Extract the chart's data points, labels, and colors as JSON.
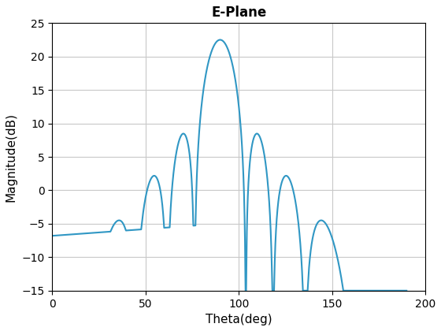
{
  "title": "E-Plane",
  "xlabel": "Theta(deg)",
  "ylabel": "Magnitude(dB)",
  "xlim": [
    0,
    200
  ],
  "ylim": [
    -15,
    25
  ],
  "xticks": [
    0,
    50,
    100,
    150,
    200
  ],
  "yticks": [
    -15,
    -10,
    -5,
    0,
    5,
    10,
    15,
    20,
    25
  ],
  "line_color": "#3097C4",
  "line_width": 1.5,
  "grid": true,
  "background_color": "#ffffff",
  "title_fontsize": 12,
  "label_fontsize": 11
}
